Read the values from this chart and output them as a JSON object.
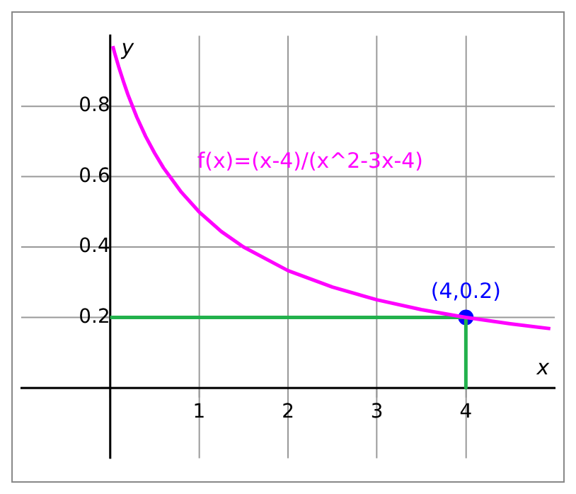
{
  "chart_data": {
    "type": "line",
    "xlabel": "x",
    "ylabel": "y",
    "xlim": [
      -1,
      5
    ],
    "ylim": [
      -0.2,
      1.0
    ],
    "xticks": [
      {
        "value": 0,
        "label": null
      },
      1,
      2,
      3,
      4
    ],
    "yticks": [
      {
        "value": 0,
        "label": null
      },
      0.2,
      0.4,
      0.6,
      0.8
    ],
    "grid": true,
    "legend": false,
    "series": [
      {
        "color": "#ff00ff",
        "marker": "none",
        "x": [
          0.03,
          0.05,
          0.1,
          0.15,
          0.2,
          0.3,
          0.4,
          0.5,
          0.6,
          0.8,
          1,
          1.25,
          1.5,
          2,
          2.5,
          3,
          3.5,
          4,
          4.5,
          4.95
        ],
        "values": [
          0.971,
          0.952,
          0.909,
          0.87,
          0.833,
          0.769,
          0.714,
          0.667,
          0.625,
          0.556,
          0.5,
          0.444,
          0.4,
          0.333,
          0.286,
          0.25,
          0.222,
          0.2,
          0.182,
          0.168
        ]
      },
      {
        "color": "#22b14c",
        "marker": "none",
        "x": [
          0,
          4,
          4
        ],
        "values": [
          0.2,
          0.2,
          0
        ]
      },
      {
        "type": "scatter",
        "color": "#0000ff",
        "marker": "circle",
        "x": [
          4
        ],
        "values": [
          0.2
        ]
      }
    ],
    "annotations": [
      "f(x)=(x-4)/(x^2-3x-4)",
      {
        "text": "(4,0.2)",
        "x": 4,
        "y": 0.2
      }
    ]
  }
}
